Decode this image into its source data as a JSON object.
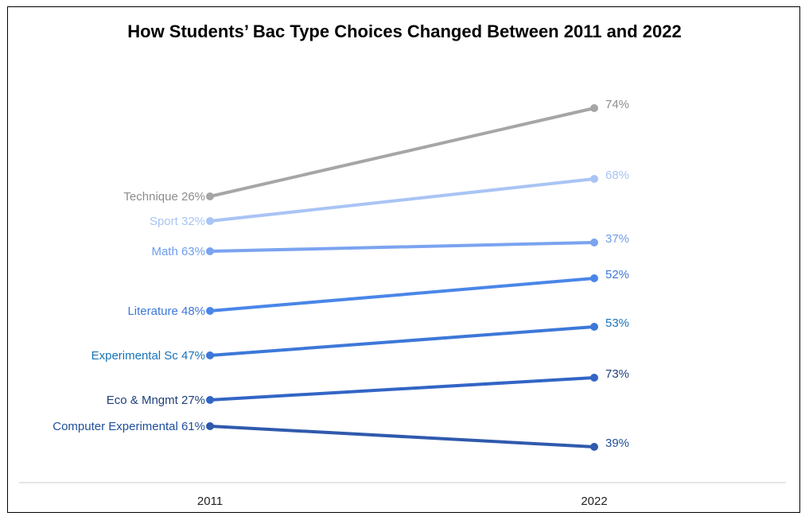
{
  "chart_data": {
    "type": "line",
    "subtype": "slope",
    "title": "How Students’ Bac Type Choices Changed Between 2011 and 2022",
    "x": [
      "2011",
      "2022"
    ],
    "grid": false,
    "legend": "none",
    "series": [
      {
        "name": "Technique",
        "start_label": "Technique 26%",
        "end_label": "74%",
        "values": [
          26,
          74
        ],
        "color": "#a6a6a6"
      },
      {
        "name": "Sport",
        "start_label": "Sport 32%",
        "end_label": "68%",
        "values": [
          32,
          68
        ],
        "color": "#a9c4f5"
      },
      {
        "name": "Math",
        "start_label": "Math 63%",
        "end_label": "37%",
        "values": [
          63,
          37
        ],
        "color": "#7ba3f0"
      },
      {
        "name": "Literature",
        "start_label": "Literature 48%",
        "end_label": "52%",
        "values": [
          48,
          52
        ],
        "color": "#4a86e8"
      },
      {
        "name": "Experimental Sc",
        "start_label": "Experimental Sc 47%",
        "end_label": "53%",
        "values": [
          47,
          53
        ],
        "color": "#3d78d8"
      },
      {
        "name": "Eco & Mngmt",
        "start_label": "Eco & Mngmt 27%",
        "end_label": "73%",
        "values": [
          27,
          73
        ],
        "color": "#3265c5"
      },
      {
        "name": "Computer Experimental",
        "start_label": "Computer Experimental 61%",
        "end_label": "39%",
        "values": [
          61,
          39
        ],
        "color": "#2f5aad"
      }
    ],
    "label_colors": {
      "Technique": "#8c8c8c",
      "Sport": "#a9c4f5",
      "Math": "#6d9eeb",
      "Literature": "#3c78d8",
      "Experimental Sc": "#1a73b8",
      "Eco & Mngmt": "#1f3f7a",
      "Computer Experimental": "#1f4e9a"
    }
  }
}
